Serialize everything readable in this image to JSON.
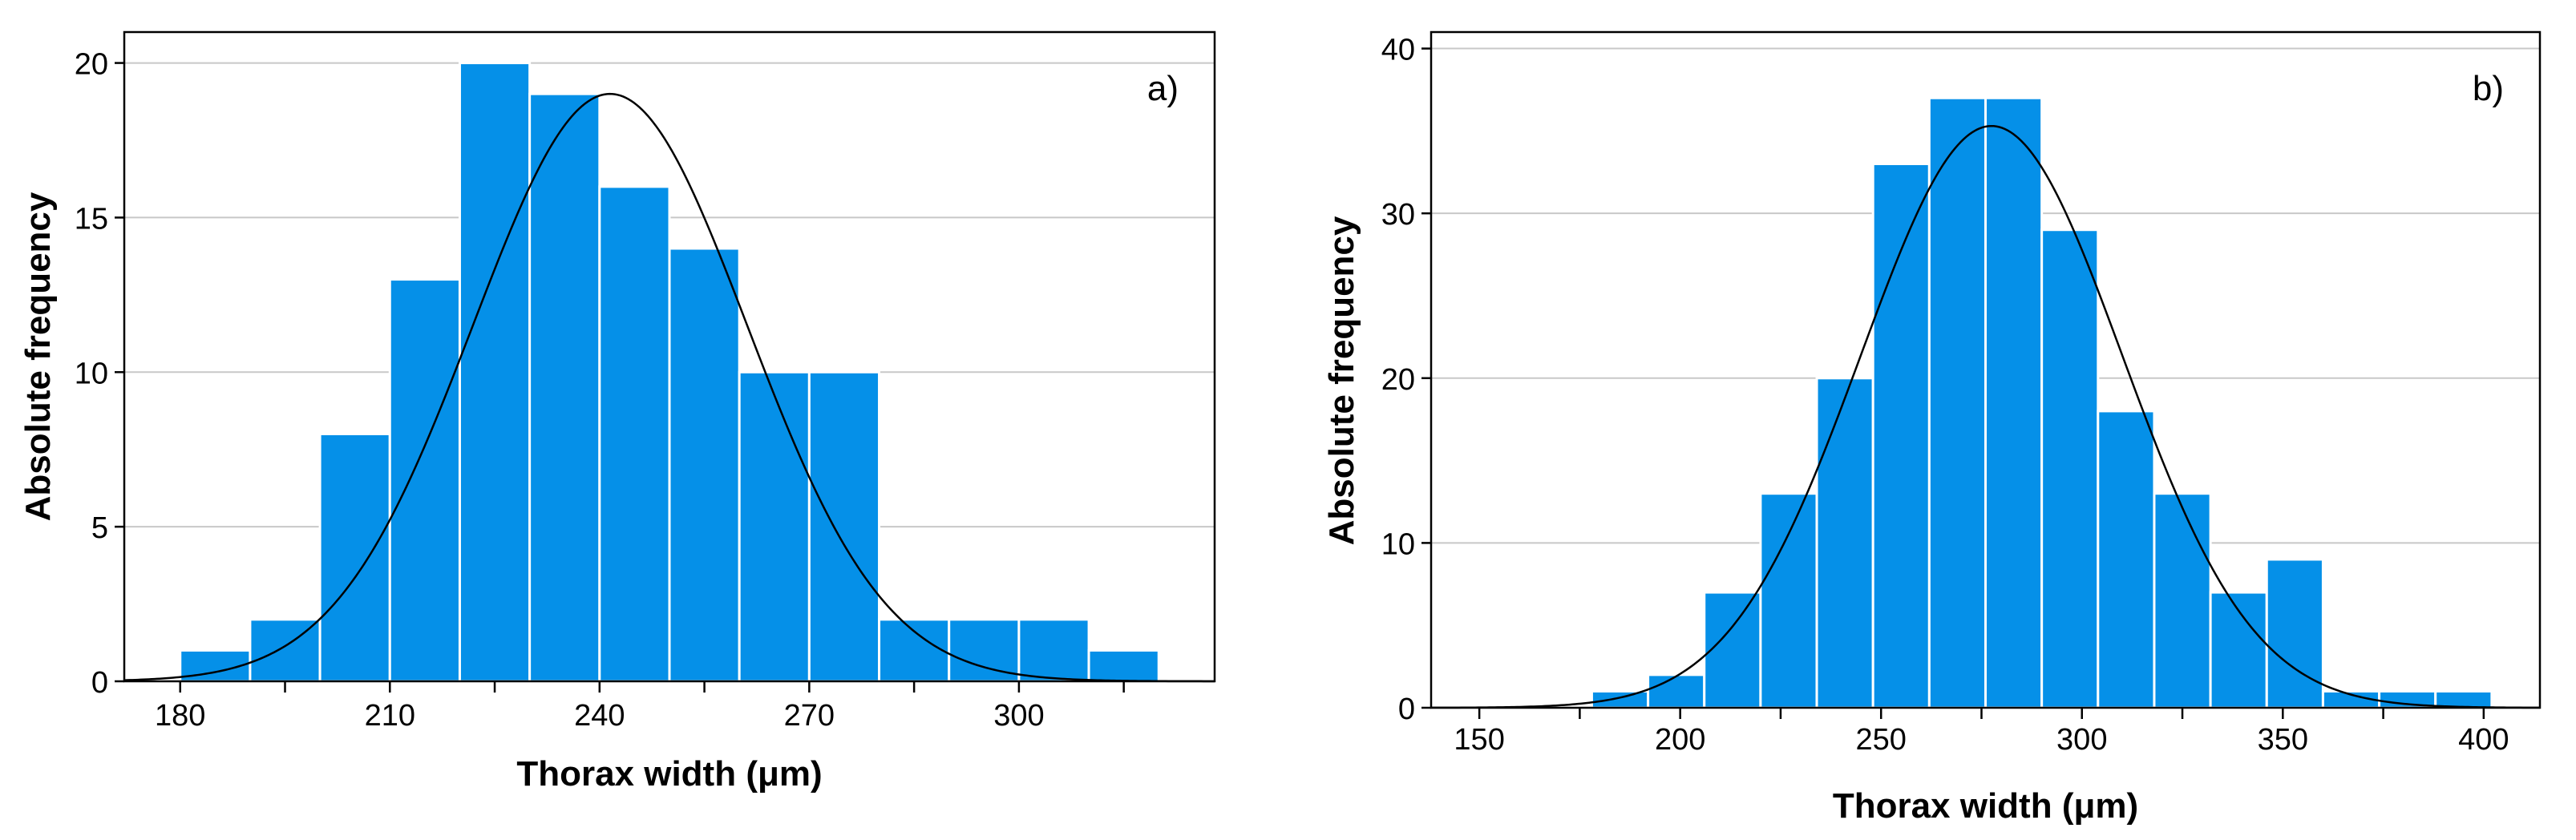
{
  "chart_data": [
    {
      "type": "bar",
      "panel_label": "a)",
      "xlabel": "Thorax width (μm)",
      "ylabel": "Absolute frequency",
      "xlim": [
        172,
        328
      ],
      "ylim": [
        0,
        21
      ],
      "xticks": [
        180,
        210,
        240,
        270,
        300
      ],
      "yticks": [
        0,
        5,
        10,
        15,
        20
      ],
      "bin_width": 10,
      "bins": [
        {
          "x0": 180,
          "x1": 190,
          "count": 1
        },
        {
          "x0": 190,
          "x1": 200,
          "count": 2
        },
        {
          "x0": 200,
          "x1": 210,
          "count": 8
        },
        {
          "x0": 210,
          "x1": 220,
          "count": 13
        },
        {
          "x0": 220,
          "x1": 230,
          "count": 20
        },
        {
          "x0": 230,
          "x1": 240,
          "count": 19
        },
        {
          "x0": 240,
          "x1": 250,
          "count": 16
        },
        {
          "x0": 250,
          "x1": 260,
          "count": 14
        },
        {
          "x0": 260,
          "x1": 270,
          "count": 10
        },
        {
          "x0": 270,
          "x1": 280,
          "count": 10
        },
        {
          "x0": 280,
          "x1": 290,
          "count": 2
        },
        {
          "x0": 290,
          "x1": 300,
          "count": 2
        },
        {
          "x0": 300,
          "x1": 310,
          "count": 2
        },
        {
          "x0": 310,
          "x1": 320,
          "count": 1
        }
      ],
      "normal_curve": {
        "mean": 241.5,
        "sd": 19.6,
        "peak": 19
      },
      "grid": "horizontal",
      "bar_color": "#0590e8",
      "curve_color": "#000000"
    },
    {
      "type": "bar",
      "panel_label": "b)",
      "xlabel": "Thorax width (μm)",
      "ylabel": "Absolute frequency",
      "xlim": [
        138,
        414
      ],
      "ylim": [
        0,
        41
      ],
      "xticks": [
        150,
        200,
        250,
        300,
        350,
        400
      ],
      "yticks": [
        0,
        10,
        20,
        30,
        40
      ],
      "bin_width": 14,
      "bins": [
        {
          "x0": 178,
          "x1": 192,
          "count": 1
        },
        {
          "x0": 192,
          "x1": 206,
          "count": 2
        },
        {
          "x0": 206,
          "x1": 220,
          "count": 7
        },
        {
          "x0": 220,
          "x1": 234,
          "count": 13
        },
        {
          "x0": 234,
          "x1": 248,
          "count": 20
        },
        {
          "x0": 248,
          "x1": 262,
          "count": 33
        },
        {
          "x0": 262,
          "x1": 276,
          "count": 37
        },
        {
          "x0": 276,
          "x1": 290,
          "count": 37
        },
        {
          "x0": 290,
          "x1": 304,
          "count": 29
        },
        {
          "x0": 304,
          "x1": 318,
          "count": 18
        },
        {
          "x0": 318,
          "x1": 332,
          "count": 13
        },
        {
          "x0": 332,
          "x1": 346,
          "count": 7
        },
        {
          "x0": 346,
          "x1": 360,
          "count": 9
        },
        {
          "x0": 360,
          "x1": 374,
          "count": 1
        },
        {
          "x0": 374,
          "x1": 388,
          "count": 1
        },
        {
          "x0": 388,
          "x1": 402,
          "count": 1
        }
      ],
      "normal_curve": {
        "mean": 277.5,
        "sd": 32.5,
        "peak": 35.3
      },
      "grid": "horizontal",
      "bar_color": "#0590e8",
      "curve_color": "#000000"
    }
  ]
}
